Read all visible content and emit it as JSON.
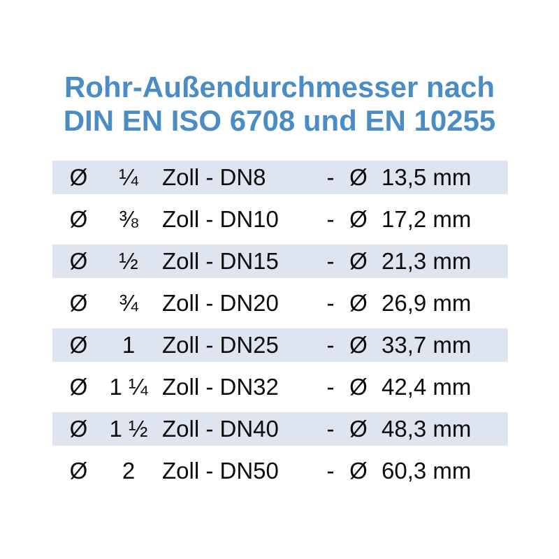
{
  "title": {
    "line1": "Rohr-Außendurchmesser nach",
    "line2": "DIN EN ISO 6708 und EN 10255"
  },
  "colors": {
    "title_blue": "#4B8CC4",
    "row_stripe": "#DFE5F0",
    "text": "#0c0c0c",
    "background": "#ffffff"
  },
  "table": {
    "rows": [
      {
        "d1": "Ø",
        "inch": "¼",
        "zoll_dn": "Zoll - DN8",
        "sep": "-",
        "d2": "Ø",
        "mm": "13,5 mm",
        "shaded": true
      },
      {
        "d1": "Ø",
        "inch": "⅜",
        "zoll_dn": "Zoll - DN10",
        "sep": "-",
        "d2": "Ø",
        "mm": "17,2 mm",
        "shaded": false
      },
      {
        "d1": "Ø",
        "inch": "½",
        "zoll_dn": "Zoll - DN15",
        "sep": "-",
        "d2": "Ø",
        "mm": "21,3 mm",
        "shaded": true
      },
      {
        "d1": "Ø",
        "inch": "¾",
        "zoll_dn": "Zoll - DN20",
        "sep": "-",
        "d2": "Ø",
        "mm": "26,9 mm",
        "shaded": false
      },
      {
        "d1": "Ø",
        "inch": "1",
        "zoll_dn": "Zoll - DN25",
        "sep": "-",
        "d2": "Ø",
        "mm": "33,7 mm",
        "shaded": true
      },
      {
        "d1": "Ø",
        "inch": "1 ¼",
        "zoll_dn": "Zoll - DN32",
        "sep": "-",
        "d2": "Ø",
        "mm": "42,4 mm",
        "shaded": false
      },
      {
        "d1": "Ø",
        "inch": "1 ½",
        "zoll_dn": "Zoll - DN40",
        "sep": "-",
        "d2": "Ø",
        "mm": "48,3 mm",
        "shaded": true
      },
      {
        "d1": "Ø",
        "inch": "2",
        "zoll_dn": "Zoll - DN50",
        "sep": "-",
        "d2": "Ø",
        "mm": "60,3 mm",
        "shaded": false
      }
    ]
  }
}
